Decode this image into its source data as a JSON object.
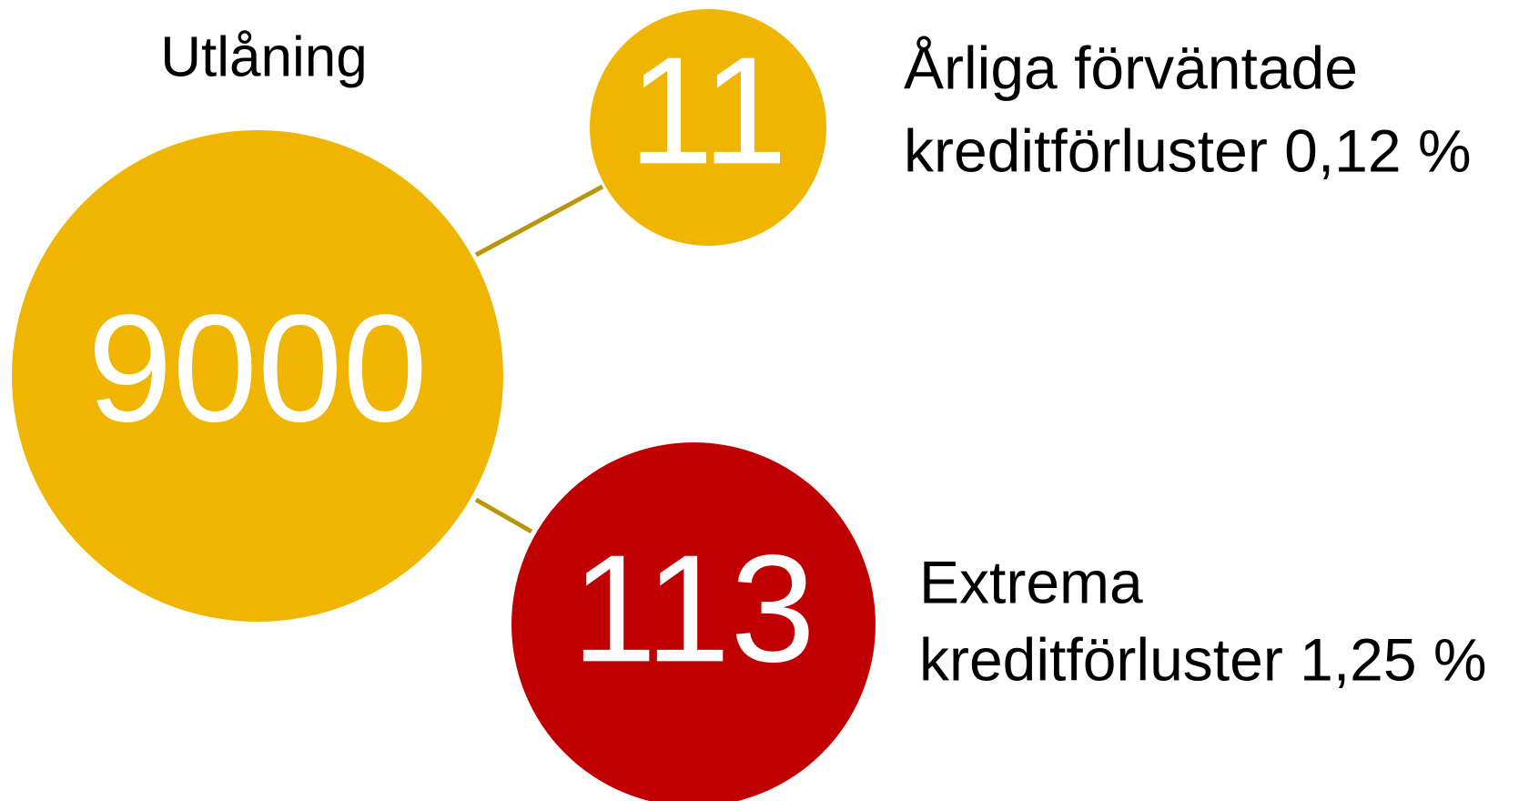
{
  "title": "Utlåning",
  "nodes": [
    {
      "value": 9000
    },
    {
      "value": 11,
      "label": [
        "Årliga förväntade",
        "kreditförluster 0,12 %"
      ]
    },
    {
      "value": 113,
      "label": [
        "Extrema",
        "kreditförluster 1,25 %"
      ]
    }
  ]
}
